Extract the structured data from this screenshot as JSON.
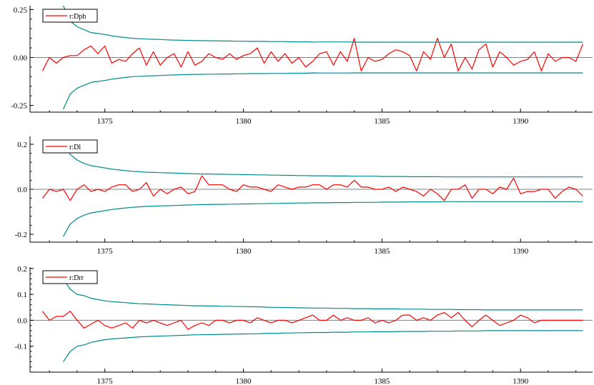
{
  "chart_data": [
    {
      "type": "line",
      "title": "",
      "xlabel": "",
      "ylabel": "",
      "xlim": [
        1372.3,
        1392.6
      ],
      "ylim": [
        -0.285,
        0.27
      ],
      "yticks": [
        0.25,
        0.0,
        -0.25
      ],
      "ytick_labels": [
        "0.25",
        "0.00",
        "-0.25"
      ],
      "xticks": [
        1375,
        1380,
        1385,
        1390
      ],
      "xtick_labels": [
        "1375",
        "1380",
        "1385",
        "1390"
      ],
      "grid": false,
      "zero_line": true,
      "legend": {
        "position": "top-left",
        "entries": [
          "r:Dph"
        ]
      },
      "series": [
        {
          "name": "r:Dph",
          "color": "#ff0000",
          "x_start": 1372.75,
          "x_step": 0.25,
          "values": [
            -0.07,
            0.0,
            -0.03,
            0.0,
            0.01,
            0.01,
            0.04,
            0.06,
            0.02,
            0.06,
            -0.03,
            -0.01,
            -0.02,
            0.02,
            0.05,
            -0.04,
            0.03,
            -0.04,
            0.0,
            0.02,
            -0.05,
            0.03,
            -0.04,
            -0.02,
            0.02,
            0.0,
            -0.01,
            0.02,
            -0.01,
            0.01,
            0.02,
            0.05,
            -0.03,
            0.03,
            -0.02,
            0.02,
            -0.03,
            0.0,
            -0.05,
            -0.02,
            0.02,
            0.03,
            -0.04,
            0.03,
            -0.02,
            0.1,
            -0.07,
            0.0,
            -0.02,
            -0.01,
            0.02,
            0.04,
            0.03,
            0.01,
            -0.07,
            0.03,
            -0.01,
            0.1,
            0.0,
            0.07,
            -0.07,
            0.0,
            -0.06,
            0.04,
            0.07,
            -0.05,
            0.03,
            0.0,
            -0.04,
            -0.02,
            -0.01,
            0.03,
            -0.07,
            0.02,
            -0.02,
            0.0,
            0.0,
            -0.02,
            0.07
          ]
        },
        {
          "name": "",
          "color": "#008b8b",
          "role": "upper-bound",
          "x_start": 1373.5,
          "x_step": 0.25,
          "values": [
            0.27,
            0.19,
            0.16,
            0.145,
            0.13,
            0.125,
            0.12,
            0.113,
            0.108,
            0.104,
            0.1,
            0.098,
            0.096,
            0.095,
            0.094,
            0.092,
            0.091,
            0.09,
            0.089,
            0.088,
            0.088,
            0.087,
            0.087,
            0.086,
            0.086,
            0.085,
            0.085,
            0.084,
            0.084,
            0.084,
            0.083,
            0.083,
            0.083,
            0.082,
            0.082,
            0.082,
            0.08,
            0.081,
            0.081,
            0.081,
            0.081,
            0.081,
            0.08,
            0.08,
            0.08,
            0.08,
            0.08,
            0.08,
            0.08,
            0.08,
            0.08,
            0.08,
            0.08,
            0.08,
            0.08,
            0.08,
            0.08,
            0.08,
            0.08,
            0.08,
            0.08,
            0.08,
            0.08,
            0.08,
            0.08,
            0.08,
            0.08,
            0.08,
            0.08,
            0.08,
            0.08,
            0.08,
            0.08,
            0.08,
            0.08,
            0.08
          ]
        },
        {
          "name": "",
          "color": "#008b8b",
          "role": "lower-bound",
          "x_start": 1373.5,
          "x_step": 0.25,
          "values": [
            -0.27,
            -0.19,
            -0.16,
            -0.145,
            -0.13,
            -0.125,
            -0.12,
            -0.113,
            -0.108,
            -0.104,
            -0.1,
            -0.098,
            -0.096,
            -0.095,
            -0.094,
            -0.092,
            -0.091,
            -0.09,
            -0.089,
            -0.088,
            -0.088,
            -0.087,
            -0.087,
            -0.086,
            -0.086,
            -0.085,
            -0.085,
            -0.084,
            -0.084,
            -0.084,
            -0.083,
            -0.083,
            -0.083,
            -0.082,
            -0.082,
            -0.082,
            -0.08,
            -0.081,
            -0.081,
            -0.081,
            -0.081,
            -0.081,
            -0.08,
            -0.08,
            -0.08,
            -0.08,
            -0.08,
            -0.08,
            -0.08,
            -0.08,
            -0.08,
            -0.08,
            -0.08,
            -0.08,
            -0.08,
            -0.08,
            -0.08,
            -0.08,
            -0.08,
            -0.08,
            -0.08,
            -0.08,
            -0.08,
            -0.08,
            -0.08,
            -0.08,
            -0.08,
            -0.08,
            -0.08,
            -0.08,
            -0.08,
            -0.08,
            -0.08,
            -0.08,
            -0.08,
            -0.08
          ]
        }
      ]
    },
    {
      "type": "line",
      "title": "",
      "xlabel": "",
      "ylabel": "",
      "xlim": [
        1372.3,
        1392.6
      ],
      "ylim": [
        -0.235,
        0.235
      ],
      "yticks": [
        0.2,
        0.0,
        -0.2
      ],
      "ytick_labels": [
        "0.2",
        "0.0",
        "-0.2"
      ],
      "xticks": [
        1375,
        1380,
        1385,
        1390
      ],
      "xtick_labels": [
        "1375",
        "1380",
        "1385",
        "1390"
      ],
      "grid": false,
      "zero_line": true,
      "legend": {
        "position": "top-left",
        "entries": [
          "r:Dl"
        ]
      },
      "series": [
        {
          "name": "r:Dl",
          "color": "#ff0000",
          "x_start": 1372.75,
          "x_step": 0.25,
          "values": [
            -0.04,
            0.0,
            -0.01,
            0.0,
            -0.05,
            0.0,
            0.02,
            -0.01,
            0.0,
            -0.01,
            0.01,
            0.02,
            0.02,
            -0.01,
            0.0,
            0.03,
            -0.03,
            0.0,
            -0.02,
            0.0,
            0.01,
            -0.02,
            -0.01,
            0.06,
            0.02,
            0.02,
            0.02,
            0.0,
            -0.01,
            0.02,
            0.01,
            0.01,
            0.0,
            -0.01,
            0.02,
            0.01,
            0.0,
            0.01,
            0.01,
            0.02,
            0.02,
            0.0,
            0.02,
            0.02,
            0.01,
            0.04,
            0.01,
            0.01,
            0.0,
            0.0,
            0.01,
            -0.01,
            0.01,
            0.0,
            -0.01,
            -0.03,
            0.0,
            -0.02,
            -0.05,
            0.0,
            0.0,
            0.02,
            -0.04,
            0.0,
            0.0,
            -0.02,
            0.01,
            0.0,
            0.05,
            -0.02,
            -0.01,
            -0.01,
            0.0,
            0.0,
            -0.04,
            -0.01,
            0.01,
            0.0,
            -0.03
          ]
        },
        {
          "name": "",
          "color": "#008b8b",
          "role": "upper-bound",
          "x_start": 1373.5,
          "x_step": 0.25,
          "values": [
            0.21,
            0.155,
            0.13,
            0.115,
            0.105,
            0.1,
            0.095,
            0.09,
            0.086,
            0.083,
            0.08,
            0.078,
            0.076,
            0.075,
            0.074,
            0.073,
            0.072,
            0.071,
            0.07,
            0.069,
            0.068,
            0.068,
            0.067,
            0.067,
            0.066,
            0.066,
            0.065,
            0.065,
            0.064,
            0.064,
            0.063,
            0.063,
            0.062,
            0.062,
            0.061,
            0.061,
            0.06,
            0.06,
            0.06,
            0.059,
            0.059,
            0.059,
            0.058,
            0.058,
            0.058,
            0.058,
            0.057,
            0.057,
            0.057,
            0.057,
            0.056,
            0.056,
            0.056,
            0.056,
            0.056,
            0.055,
            0.055,
            0.055,
            0.055,
            0.055,
            0.055,
            0.055,
            0.055,
            0.055,
            0.055,
            0.055,
            0.055,
            0.055,
            0.055,
            0.055,
            0.055,
            0.055,
            0.055,
            0.055,
            0.055,
            0.055
          ]
        },
        {
          "name": "",
          "color": "#008b8b",
          "role": "lower-bound",
          "x_start": 1373.5,
          "x_step": 0.25,
          "values": [
            -0.21,
            -0.155,
            -0.13,
            -0.115,
            -0.105,
            -0.1,
            -0.095,
            -0.09,
            -0.086,
            -0.083,
            -0.08,
            -0.078,
            -0.076,
            -0.075,
            -0.074,
            -0.073,
            -0.072,
            -0.071,
            -0.07,
            -0.069,
            -0.068,
            -0.068,
            -0.067,
            -0.067,
            -0.066,
            -0.066,
            -0.065,
            -0.065,
            -0.064,
            -0.064,
            -0.063,
            -0.063,
            -0.062,
            -0.062,
            -0.061,
            -0.061,
            -0.06,
            -0.06,
            -0.06,
            -0.059,
            -0.059,
            -0.059,
            -0.058,
            -0.058,
            -0.058,
            -0.058,
            -0.057,
            -0.057,
            -0.057,
            -0.057,
            -0.056,
            -0.056,
            -0.056,
            -0.056,
            -0.056,
            -0.055,
            -0.055,
            -0.055,
            -0.055,
            -0.055,
            -0.055,
            -0.055,
            -0.055,
            -0.055,
            -0.055,
            -0.055,
            -0.055,
            -0.055,
            -0.055,
            -0.055,
            -0.055,
            -0.055,
            -0.055,
            -0.055,
            -0.055,
            -0.055
          ]
        }
      ]
    },
    {
      "type": "line",
      "title": "",
      "xlabel": "",
      "ylabel": "",
      "xlim": [
        1372.3,
        1392.6
      ],
      "ylim": [
        -0.2,
        0.205
      ],
      "yticks": [
        0.2,
        0.1,
        0.0,
        -0.1
      ],
      "ytick_labels": [
        "0.2",
        "0.1",
        "0.0",
        "-0.1"
      ],
      "xticks": [
        1375,
        1380,
        1385,
        1390
      ],
      "xtick_labels": [
        "1375",
        "1380",
        "1385",
        "1390"
      ],
      "grid": false,
      "zero_line": true,
      "legend": {
        "position": "top-left",
        "entries": [
          "r:Drr"
        ]
      },
      "series": [
        {
          "name": "r:Drr",
          "color": "#ff0000",
          "x_start": 1372.75,
          "x_step": 0.25,
          "values": [
            0.035,
            0.0,
            0.015,
            0.015,
            0.035,
            0.0,
            -0.03,
            -0.015,
            0.0,
            -0.02,
            -0.03,
            -0.02,
            -0.01,
            -0.03,
            0.0,
            -0.01,
            0.0,
            -0.01,
            -0.02,
            -0.01,
            0.0,
            -0.035,
            -0.02,
            -0.01,
            -0.02,
            0.0,
            0.0,
            -0.01,
            0.0,
            0.0,
            -0.01,
            0.01,
            0.0,
            -0.01,
            0.0,
            0.0,
            -0.01,
            0.0,
            0.01,
            0.02,
            0.0,
            0.0,
            0.02,
            0.0,
            0.01,
            0.0,
            0.0,
            0.01,
            -0.01,
            0.0,
            -0.01,
            0.0,
            0.02,
            0.02,
            0.0,
            0.01,
            0.0,
            0.02,
            0.03,
            0.01,
            0.03,
            0.0,
            -0.025,
            0.0,
            0.02,
            0.0,
            -0.02,
            -0.01,
            0.0,
            0.02,
            0.01,
            -0.01,
            0.0,
            0.0,
            0.0,
            0.0,
            0.0,
            0.0,
            0.0
          ]
        },
        {
          "name": "",
          "color": "#008b8b",
          "role": "upper-bound",
          "x_start": 1373.5,
          "x_step": 0.25,
          "values": [
            0.16,
            0.12,
            0.1,
            0.095,
            0.085,
            0.08,
            0.075,
            0.072,
            0.07,
            0.068,
            0.066,
            0.064,
            0.063,
            0.062,
            0.061,
            0.06,
            0.059,
            0.058,
            0.057,
            0.056,
            0.056,
            0.055,
            0.055,
            0.054,
            0.054,
            0.053,
            0.053,
            0.052,
            0.052,
            0.051,
            0.05,
            0.05,
            0.049,
            0.049,
            0.048,
            0.048,
            0.047,
            0.047,
            0.047,
            0.046,
            0.046,
            0.046,
            0.045,
            0.045,
            0.045,
            0.044,
            0.044,
            0.044,
            0.044,
            0.043,
            0.043,
            0.043,
            0.043,
            0.042,
            0.042,
            0.042,
            0.042,
            0.041,
            0.041,
            0.041,
            0.041,
            0.04,
            0.04,
            0.04,
            0.04,
            0.04,
            0.04,
            0.04,
            0.04,
            0.04,
            0.04,
            0.04,
            0.04,
            0.04,
            0.04,
            0.04
          ]
        },
        {
          "name": "",
          "color": "#008b8b",
          "role": "lower-bound",
          "x_start": 1373.5,
          "x_step": 0.25,
          "values": [
            -0.16,
            -0.12,
            -0.1,
            -0.095,
            -0.085,
            -0.08,
            -0.075,
            -0.072,
            -0.07,
            -0.068,
            -0.066,
            -0.064,
            -0.063,
            -0.062,
            -0.061,
            -0.06,
            -0.059,
            -0.058,
            -0.057,
            -0.056,
            -0.056,
            -0.055,
            -0.055,
            -0.054,
            -0.054,
            -0.053,
            -0.053,
            -0.052,
            -0.052,
            -0.051,
            -0.05,
            -0.05,
            -0.049,
            -0.049,
            -0.048,
            -0.048,
            -0.047,
            -0.047,
            -0.047,
            -0.046,
            -0.046,
            -0.046,
            -0.045,
            -0.045,
            -0.045,
            -0.044,
            -0.044,
            -0.044,
            -0.044,
            -0.043,
            -0.043,
            -0.043,
            -0.043,
            -0.042,
            -0.042,
            -0.042,
            -0.042,
            -0.041,
            -0.041,
            -0.041,
            -0.041,
            -0.04,
            -0.04,
            -0.04,
            -0.04,
            -0.04,
            -0.04,
            -0.04,
            -0.04,
            -0.04,
            -0.04,
            -0.04,
            -0.04,
            -0.04,
            -0.04,
            -0.04
          ]
        }
      ]
    }
  ]
}
